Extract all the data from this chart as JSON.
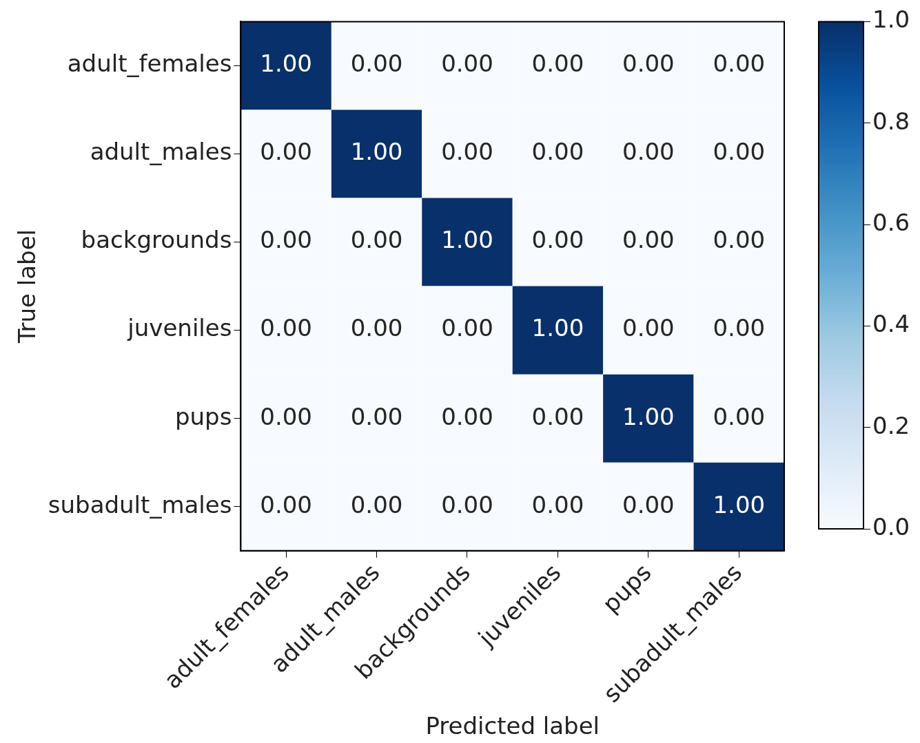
{
  "chart_data": {
    "type": "heatmap",
    "xlabel": "Predicted label",
    "ylabel": "True label",
    "categories": [
      "adult_females",
      "adult_males",
      "backgrounds",
      "juveniles",
      "pups",
      "subadult_males"
    ],
    "y_categories": [
      "adult_females",
      "adult_males",
      "backgrounds",
      "juveniles",
      "pups",
      "subadult_males"
    ],
    "cells": [
      [
        1,
        0,
        0,
        0,
        0,
        0
      ],
      [
        0,
        1,
        0,
        0,
        0,
        0
      ],
      [
        0,
        0,
        1,
        0,
        0,
        0
      ],
      [
        0,
        0,
        0,
        1,
        0,
        0
      ],
      [
        0,
        0,
        0,
        0,
        1,
        0
      ],
      [
        0,
        0,
        0,
        0,
        0,
        1
      ]
    ],
    "cell_labels": [
      [
        "1.00",
        "0.00",
        "0.00",
        "0.00",
        "0.00",
        "0.00"
      ],
      [
        "0.00",
        "1.00",
        "0.00",
        "0.00",
        "0.00",
        "0.00"
      ],
      [
        "0.00",
        "0.00",
        "1.00",
        "0.00",
        "0.00",
        "0.00"
      ],
      [
        "0.00",
        "0.00",
        "0.00",
        "1.00",
        "0.00",
        "0.00"
      ],
      [
        "0.00",
        "0.00",
        "0.00",
        "0.00",
        "1.00",
        "0.00"
      ],
      [
        "0.00",
        "0.00",
        "0.00",
        "0.00",
        "0.00",
        "1.00"
      ]
    ],
    "clim": [
      0,
      1
    ],
    "cticks": [
      {
        "value": 0,
        "label": "0.0"
      },
      {
        "value": 0.2,
        "label": "0.2"
      },
      {
        "value": 0.4,
        "label": "0.4"
      },
      {
        "value": 0.6,
        "label": "0.6"
      },
      {
        "value": 0.8,
        "label": "0.8"
      },
      {
        "value": 1,
        "label": "1.0"
      }
    ]
  }
}
